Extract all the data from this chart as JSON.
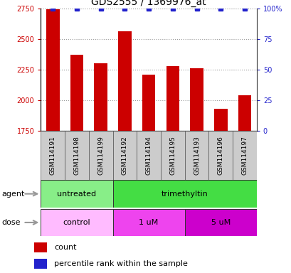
{
  "title": "GDS2555 / 1369976_at",
  "samples": [
    "GSM114191",
    "GSM114198",
    "GSM114199",
    "GSM114192",
    "GSM114194",
    "GSM114195",
    "GSM114193",
    "GSM114196",
    "GSM114197"
  ],
  "counts": [
    2740,
    2370,
    2300,
    2560,
    2210,
    2280,
    2260,
    1930,
    2040
  ],
  "percentiles": [
    100,
    100,
    100,
    100,
    100,
    100,
    100,
    100,
    100
  ],
  "ylim_left": [
    1750,
    2750
  ],
  "ylim_right": [
    0,
    100
  ],
  "yticks_left": [
    1750,
    2000,
    2250,
    2500,
    2750
  ],
  "yticks_right": [
    0,
    25,
    50,
    75,
    100
  ],
  "bar_color": "#cc0000",
  "dot_color": "#2222cc",
  "agent_groups": [
    {
      "label": "untreated",
      "start": 0,
      "end": 3,
      "color": "#88ee88"
    },
    {
      "label": "trimethyltin",
      "start": 3,
      "end": 9,
      "color": "#44dd44"
    }
  ],
  "dose_groups": [
    {
      "label": "control",
      "start": 0,
      "end": 3,
      "color": "#ffbbff"
    },
    {
      "label": "1 uM",
      "start": 3,
      "end": 6,
      "color": "#ee44ee"
    },
    {
      "label": "5 uM",
      "start": 6,
      "end": 9,
      "color": "#cc00cc"
    }
  ],
  "legend_count_color": "#cc0000",
  "legend_percentile_color": "#2222cc",
  "grid_color": "#999999",
  "tick_color_left": "#cc0000",
  "tick_color_right": "#2222cc",
  "sample_box_color": "#cccccc",
  "label_arrow_color": "#999999",
  "bar_bottom": 1750,
  "label_fontsize": 7,
  "sample_fontsize": 6.5,
  "title_fontsize": 10
}
